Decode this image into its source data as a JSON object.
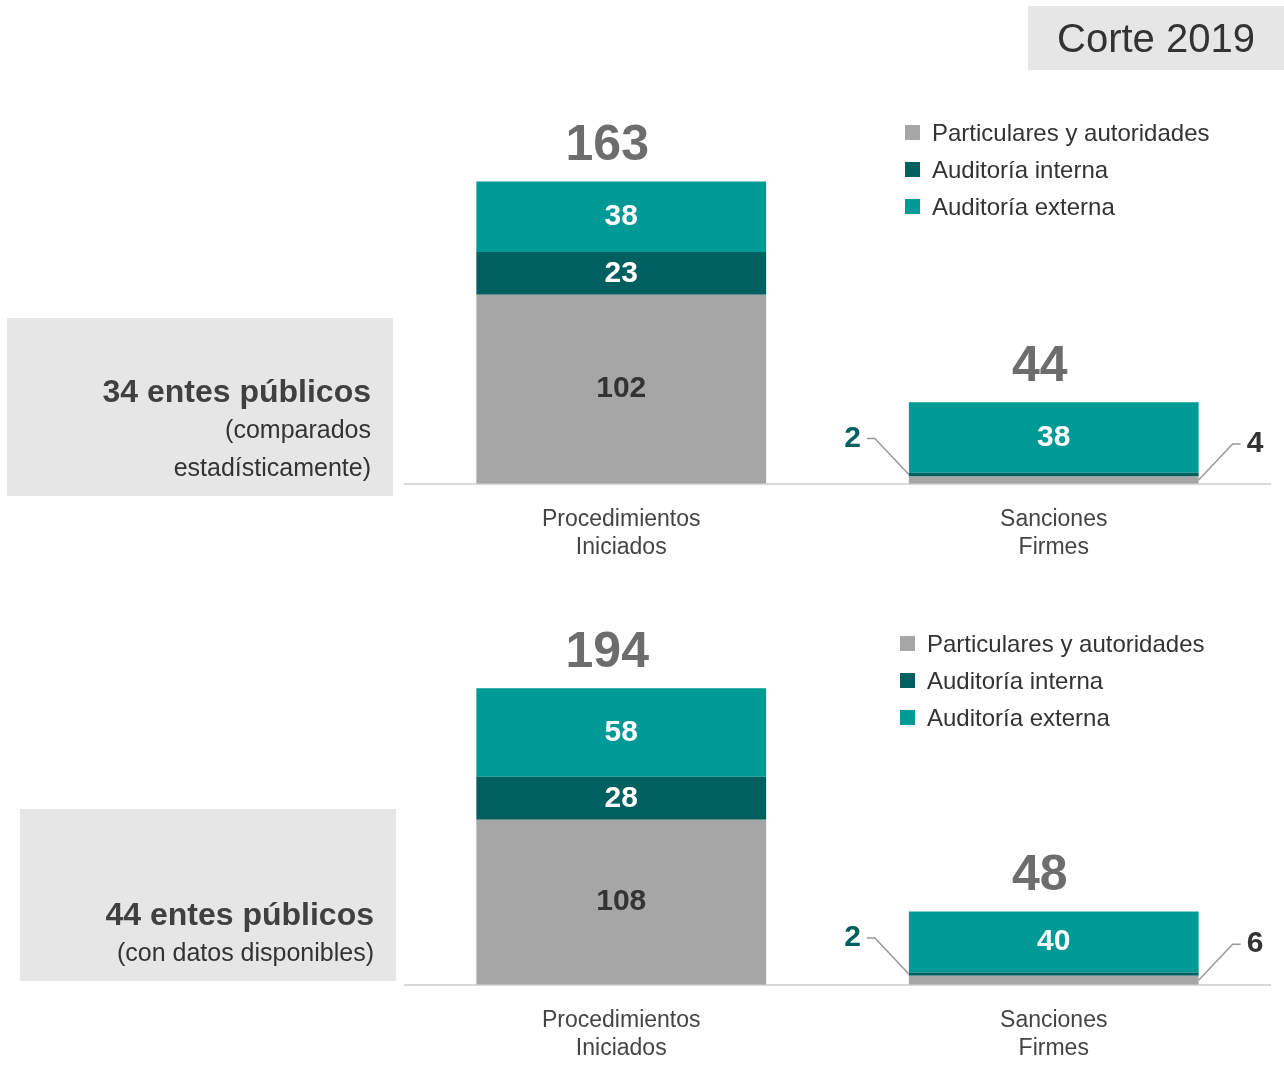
{
  "chart_data": [
    {
      "type": "bar",
      "title": "Corte 2019",
      "categories": [
        "Procedimientos Iniciados",
        "Sanciones Firmes"
      ],
      "stacked": true,
      "data_labels": true,
      "totals": [
        "163",
        "44"
      ],
      "legend": "top right",
      "annotations": [
        "34 entes públicos",
        "(comparados estadísticamente)"
      ],
      "series": [
        {
          "name": "Particulares y autoridades",
          "color": "#a6a6a6",
          "values": [
            102,
            4
          ]
        },
        {
          "name": "Auditoría interna",
          "color": "#00605f",
          "values": [
            23,
            2
          ]
        },
        {
          "name": "Auditoría externa",
          "color": "#009a96",
          "values": [
            38,
            38
          ]
        }
      ]
    },
    {
      "type": "bar",
      "categories": [
        "Procedimientos Iniciados",
        "Sanciones Firmes"
      ],
      "stacked": true,
      "data_labels": true,
      "totals": [
        "194",
        "48"
      ],
      "legend": "top right",
      "annotations": [
        "44 entes públicos",
        "(con datos disponibles)"
      ],
      "series": [
        {
          "name": "Particulares y autoridades",
          "color": "#a6a6a6",
          "values": [
            108,
            6
          ]
        },
        {
          "name": "Auditoría interna",
          "color": "#00605f",
          "values": [
            28,
            2
          ]
        },
        {
          "name": "Auditoría externa",
          "color": "#009a96",
          "values": [
            58,
            40
          ]
        }
      ]
    }
  ]
}
